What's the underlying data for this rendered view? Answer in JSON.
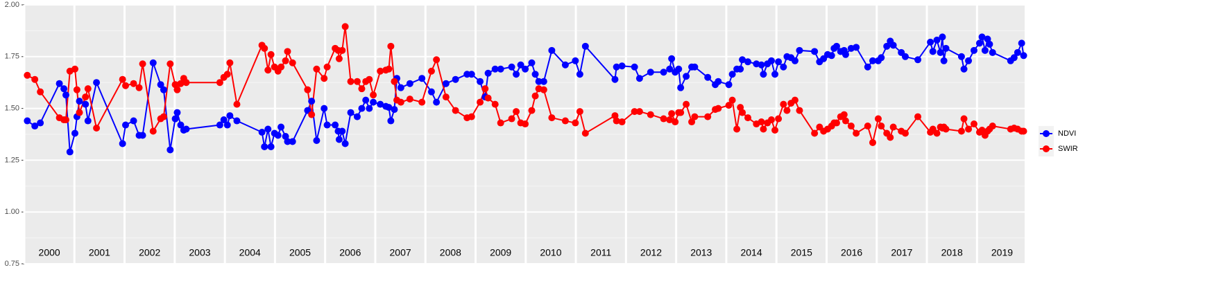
{
  "chart_data": {
    "type": "line",
    "year_labels": [
      2000,
      2001,
      2002,
      2003,
      2004,
      2005,
      2006,
      2007,
      2008,
      2009,
      2010,
      2011,
      2012,
      2013,
      2014,
      2015,
      2016,
      2017,
      2018,
      2019
    ],
    "xlim": [
      2000,
      2019.95
    ],
    "ylim": [
      0.75,
      2.0
    ],
    "yticks": [
      {
        "value": 0.75,
        "label": "0.75"
      },
      {
        "value": 1.0,
        "label": "1.00"
      },
      {
        "value": 1.25,
        "label": "1.25"
      },
      {
        "value": 1.5,
        "label": "1.50"
      },
      {
        "value": 1.75,
        "label": "1.75"
      },
      {
        "value": 2.0,
        "label": "2.00"
      }
    ],
    "grid": true,
    "legend": "right",
    "x": [
      2000.06,
      2000.21,
      2000.32,
      2000.7,
      2000.79,
      2000.83,
      2000.91,
      2001.01,
      2001.05,
      2001.1,
      2001.22,
      2001.27,
      2001.44,
      2001.96,
      2002.02,
      2002.18,
      2002.29,
      2002.36,
      2002.57,
      2002.72,
      2002.78,
      2002.91,
      2003.01,
      2003.05,
      2003.12,
      2003.18,
      2003.23,
      2003.9,
      2003.98,
      2004.05,
      2004.1,
      2004.24,
      2004.74,
      2004.79,
      2004.86,
      2004.92,
      2004.99,
      2005.06,
      2005.12,
      2005.21,
      2005.25,
      2005.35,
      2005.65,
      2005.73,
      2005.83,
      2005.98,
      2006.04,
      2006.2,
      2006.26,
      2006.28,
      2006.34,
      2006.4,
      2006.51,
      2006.64,
      2006.73,
      2006.81,
      2006.88,
      2006.96,
      2007.1,
      2007.21,
      2007.27,
      2007.31,
      2007.38,
      2007.43,
      2007.51,
      2007.69,
      2007.93,
      2008.12,
      2008.22,
      2008.41,
      2008.6,
      2008.83,
      2008.92,
      2009.09,
      2009.19,
      2009.25,
      2009.39,
      2009.5,
      2009.72,
      2009.81,
      2009.9,
      2009.99,
      2010.12,
      2010.19,
      2010.26,
      2010.36,
      2010.52,
      2010.79,
      2010.99,
      2011.08,
      2011.19,
      2011.78,
      2011.81,
      2011.92,
      2012.17,
      2012.27,
      2012.49,
      2012.75,
      2012.87,
      2012.91,
      2012.98,
      2013.05,
      2013.09,
      2013.2,
      2013.31,
      2013.37,
      2013.63,
      2013.78,
      2013.84,
      2014.05,
      2014.12,
      2014.21,
      2014.28,
      2014.32,
      2014.43,
      2014.6,
      2014.7,
      2014.74,
      2014.82,
      2014.9,
      2014.97,
      2015.04,
      2015.14,
      2015.21,
      2015.29,
      2015.37,
      2015.46,
      2015.76,
      2015.86,
      2015.94,
      2016.02,
      2016.1,
      2016.15,
      2016.2,
      2016.28,
      2016.35,
      2016.38,
      2016.49,
      2016.59,
      2016.82,
      2016.92,
      2017.03,
      2017.09,
      2017.2,
      2017.27,
      2017.33,
      2017.49,
      2017.57,
      2017.82,
      2018.07,
      2018.12,
      2018.2,
      2018.27,
      2018.31,
      2018.34,
      2018.38,
      2018.69,
      2018.74,
      2018.83,
      2018.94,
      2019.05,
      2019.1,
      2019.16,
      2019.21,
      2019.25,
      2019.31,
      2019.67,
      2019.74,
      2019.81,
      2019.89,
      2019.93
    ],
    "series": [
      {
        "name": "NDVI",
        "color": "#0000ff",
        "values": [
          1.44,
          1.415,
          1.43,
          1.62,
          1.595,
          1.565,
          1.29,
          1.38,
          1.46,
          1.535,
          1.52,
          1.44,
          1.625,
          1.33,
          1.42,
          1.44,
          1.37,
          1.37,
          1.72,
          1.615,
          1.59,
          1.3,
          1.45,
          1.48,
          1.42,
          1.395,
          1.4,
          1.42,
          1.445,
          1.42,
          1.465,
          1.44,
          1.385,
          1.315,
          1.4,
          1.315,
          1.38,
          1.37,
          1.41,
          1.365,
          1.34,
          1.34,
          1.49,
          1.535,
          1.345,
          1.5,
          1.42,
          1.42,
          1.39,
          1.35,
          1.39,
          1.33,
          1.48,
          1.46,
          1.5,
          1.54,
          1.5,
          1.53,
          1.52,
          1.51,
          1.505,
          1.44,
          1.495,
          1.645,
          1.6,
          1.62,
          1.645,
          1.58,
          1.53,
          1.62,
          1.64,
          1.665,
          1.665,
          1.63,
          1.555,
          1.67,
          1.69,
          1.69,
          1.7,
          1.665,
          1.71,
          1.69,
          1.72,
          1.665,
          1.63,
          1.63,
          1.78,
          1.71,
          1.73,
          1.665,
          1.8,
          1.64,
          1.7,
          1.705,
          1.7,
          1.645,
          1.675,
          1.675,
          1.69,
          1.74,
          1.675,
          1.69,
          1.6,
          1.655,
          1.7,
          1.7,
          1.65,
          1.615,
          1.63,
          1.615,
          1.665,
          1.69,
          1.69,
          1.735,
          1.725,
          1.715,
          1.71,
          1.665,
          1.715,
          1.73,
          1.665,
          1.725,
          1.7,
          1.75,
          1.745,
          1.73,
          1.78,
          1.775,
          1.725,
          1.74,
          1.76,
          1.755,
          1.79,
          1.8,
          1.775,
          1.78,
          1.76,
          1.79,
          1.795,
          1.7,
          1.73,
          1.73,
          1.745,
          1.8,
          1.825,
          1.805,
          1.77,
          1.75,
          1.735,
          1.82,
          1.775,
          1.83,
          1.77,
          1.845,
          1.73,
          1.79,
          1.75,
          1.69,
          1.73,
          1.78,
          1.815,
          1.845,
          1.78,
          1.835,
          1.81,
          1.77,
          1.73,
          1.745,
          1.77,
          1.815,
          1.755
        ]
      },
      {
        "name": "SWIR",
        "color": "#ff0000",
        "values": [
          1.66,
          1.64,
          1.58,
          1.455,
          1.445,
          1.445,
          1.68,
          1.69,
          1.59,
          1.48,
          1.555,
          1.595,
          1.405,
          1.64,
          1.61,
          1.62,
          1.6,
          1.715,
          1.39,
          1.45,
          1.46,
          1.715,
          1.615,
          1.59,
          1.62,
          1.645,
          1.625,
          1.625,
          1.65,
          1.665,
          1.72,
          1.52,
          1.805,
          1.79,
          1.685,
          1.76,
          1.7,
          1.68,
          1.7,
          1.73,
          1.775,
          1.72,
          1.59,
          1.47,
          1.69,
          1.645,
          1.7,
          1.79,
          1.78,
          1.74,
          1.78,
          1.895,
          1.63,
          1.63,
          1.595,
          1.63,
          1.64,
          1.565,
          1.68,
          1.685,
          1.69,
          1.8,
          1.63,
          1.54,
          1.53,
          1.545,
          1.53,
          1.68,
          1.735,
          1.555,
          1.49,
          1.455,
          1.46,
          1.53,
          1.595,
          1.55,
          1.52,
          1.43,
          1.45,
          1.485,
          1.43,
          1.425,
          1.49,
          1.56,
          1.595,
          1.59,
          1.455,
          1.44,
          1.43,
          1.485,
          1.38,
          1.465,
          1.44,
          1.435,
          1.485,
          1.485,
          1.47,
          1.45,
          1.445,
          1.475,
          1.435,
          1.48,
          1.48,
          1.52,
          1.435,
          1.46,
          1.46,
          1.495,
          1.5,
          1.515,
          1.54,
          1.4,
          1.505,
          1.48,
          1.455,
          1.425,
          1.435,
          1.4,
          1.43,
          1.445,
          1.395,
          1.45,
          1.52,
          1.49,
          1.525,
          1.54,
          1.49,
          1.38,
          1.41,
          1.39,
          1.4,
          1.415,
          1.43,
          1.43,
          1.46,
          1.47,
          1.44,
          1.415,
          1.38,
          1.415,
          1.335,
          1.45,
          1.415,
          1.38,
          1.36,
          1.41,
          1.39,
          1.38,
          1.46,
          1.385,
          1.4,
          1.38,
          1.41,
          1.405,
          1.41,
          1.4,
          1.39,
          1.45,
          1.4,
          1.425,
          1.385,
          1.395,
          1.37,
          1.39,
          1.4,
          1.415,
          1.4,
          1.405,
          1.4,
          1.39,
          1.39
        ]
      }
    ]
  }
}
